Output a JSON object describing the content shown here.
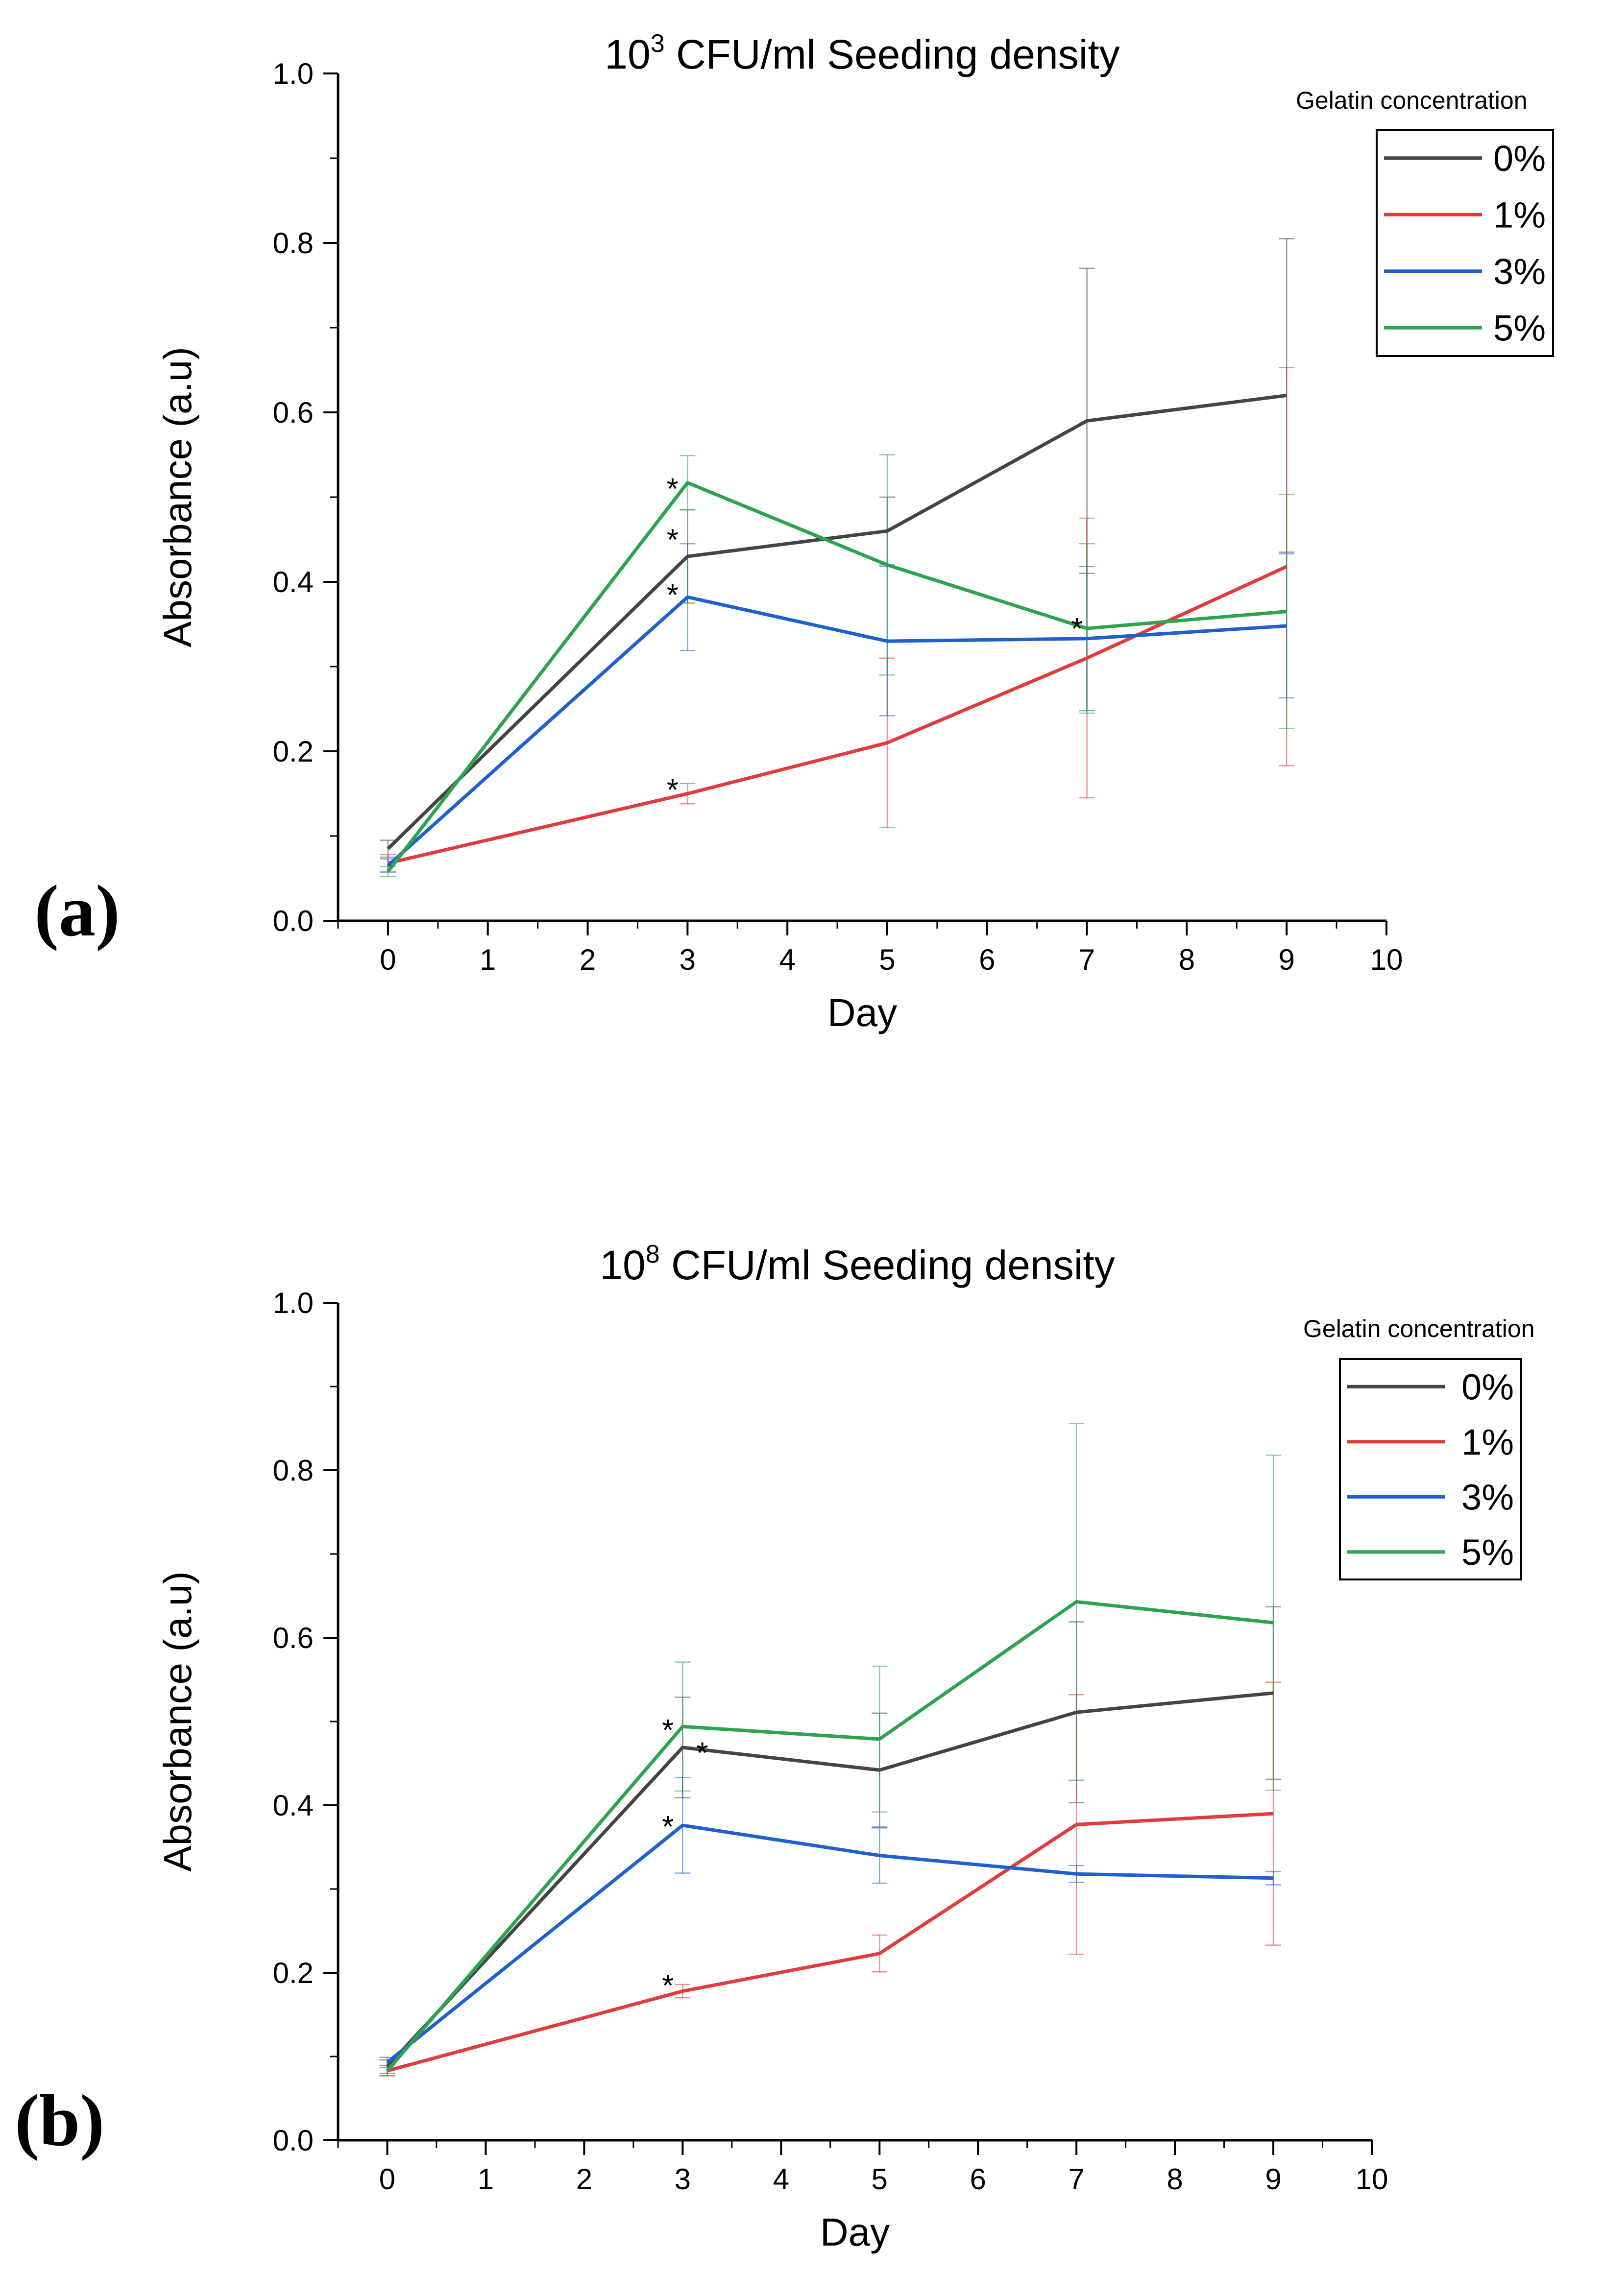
{
  "chart_data": [
    {
      "type": "line",
      "panel_label": "(a)",
      "title_prefix": "10",
      "title_superscript": "3",
      "title_suffix": " CFU/ml Seeding density",
      "xlabel": "Day",
      "ylabel": "Absorbance (a.u)",
      "xlim": [
        -0.5,
        10
      ],
      "ylim": [
        0,
        1.0
      ],
      "x_ticks": [
        0,
        1,
        2,
        3,
        4,
        5,
        6,
        7,
        8,
        9,
        10
      ],
      "x_tick_labels": [
        "0",
        "1",
        "2",
        "3",
        "4",
        "5",
        "6",
        "7",
        "8",
        "9",
        "10"
      ],
      "y_ticks": [
        0,
        0.2,
        0.4,
        0.6,
        0.8,
        1.0
      ],
      "y_tick_labels": [
        "0.0",
        "0.2",
        "0.4",
        "0.6",
        "0.8",
        "1.0"
      ],
      "grid": false,
      "legend_title": "Gelatin concentration",
      "legend_position": "top-right",
      "series": [
        {
          "name": "0%",
          "color": "#444444",
          "x": [
            0,
            3,
            5,
            7,
            9
          ],
          "y": [
            0.085,
            0.43,
            0.46,
            0.59,
            0.62
          ],
          "err": [
            0.01,
            0.055,
            0.04,
            0.18,
            0.185
          ]
        },
        {
          "name": "1%",
          "color": "#e03c3c",
          "x": [
            0,
            3,
            5,
            7,
            9
          ],
          "y": [
            0.068,
            0.15,
            0.21,
            0.31,
            0.418
          ],
          "err": [
            0.01,
            0.012,
            0.1,
            0.165,
            0.235
          ]
        },
        {
          "name": "3%",
          "color": "#1f5fd0",
          "x": [
            0,
            3,
            5,
            7,
            9
          ],
          "y": [
            0.065,
            0.382,
            0.33,
            0.333,
            0.348
          ],
          "err": [
            0.008,
            0.063,
            0.088,
            0.085,
            0.085
          ]
        },
        {
          "name": "5%",
          "color": "#2ea34f",
          "x": [
            0,
            3,
            5,
            7,
            9
          ],
          "y": [
            0.058,
            0.517,
            0.42,
            0.345,
            0.365
          ],
          "err": [
            0.006,
            0.032,
            0.13,
            0.1,
            0.138
          ]
        }
      ],
      "annotations": [
        {
          "text": "*",
          "x": 2.85,
          "y": 0.51
        },
        {
          "text": "*",
          "x": 2.85,
          "y": 0.45
        },
        {
          "text": "*",
          "x": 2.85,
          "y": 0.385
        },
        {
          "text": "*",
          "x": 2.85,
          "y": 0.155
        },
        {
          "text": "*",
          "x": 6.9,
          "y": 0.345
        }
      ]
    },
    {
      "type": "line",
      "panel_label": "(b)",
      "title_prefix": "10",
      "title_superscript": "8",
      "title_suffix": " CFU/ml Seeding density",
      "xlabel": "Day",
      "ylabel": "Absorbance (a.u)",
      "xlim": [
        -0.5,
        10
      ],
      "ylim": [
        0,
        1.0
      ],
      "x_ticks": [
        0,
        1,
        2,
        3,
        4,
        5,
        6,
        7,
        8,
        9,
        10
      ],
      "x_tick_labels": [
        "0",
        "1",
        "2",
        "3",
        "4",
        "5",
        "6",
        "7",
        "8",
        "9",
        "10"
      ],
      "y_ticks": [
        0,
        0.2,
        0.4,
        0.6,
        0.8,
        1.0
      ],
      "y_tick_labels": [
        "0.0",
        "0.2",
        "0.4",
        "0.6",
        "0.8",
        "1.0"
      ],
      "grid": false,
      "legend_title": "Gelatin concentration",
      "legend_position": "top-right",
      "series": [
        {
          "name": "0%",
          "color": "#444444",
          "x": [
            0,
            3,
            5,
            7,
            9
          ],
          "y": [
            0.088,
            0.469,
            0.442,
            0.511,
            0.534
          ],
          "err": [
            0.008,
            0.06,
            0.068,
            0.108,
            0.103
          ]
        },
        {
          "name": "1%",
          "color": "#e03c3c",
          "x": [
            0,
            3,
            5,
            7,
            9
          ],
          "y": [
            0.083,
            0.178,
            0.223,
            0.377,
            0.39
          ],
          "err": [
            0.006,
            0.008,
            0.022,
            0.155,
            0.157
          ]
        },
        {
          "name": "3%",
          "color": "#1f5fd0",
          "x": [
            0,
            3,
            5,
            7,
            9
          ],
          "y": [
            0.093,
            0.376,
            0.34,
            0.318,
            0.313
          ],
          "err": [
            0.006,
            0.057,
            0.033,
            0.01,
            0.008
          ]
        },
        {
          "name": "5%",
          "color": "#2ea34f",
          "x": [
            0,
            3,
            5,
            7,
            9
          ],
          "y": [
            0.083,
            0.494,
            0.479,
            0.643,
            0.618
          ],
          "err": [
            0.006,
            0.077,
            0.087,
            0.213,
            0.2
          ]
        }
      ],
      "annotations": [
        {
          "text": "*",
          "x": 2.85,
          "y": 0.49
        },
        {
          "text": "*",
          "x": 3.2,
          "y": 0.463
        },
        {
          "text": "*",
          "x": 2.85,
          "y": 0.375
        },
        {
          "text": "*",
          "x": 2.85,
          "y": 0.185
        }
      ]
    }
  ]
}
